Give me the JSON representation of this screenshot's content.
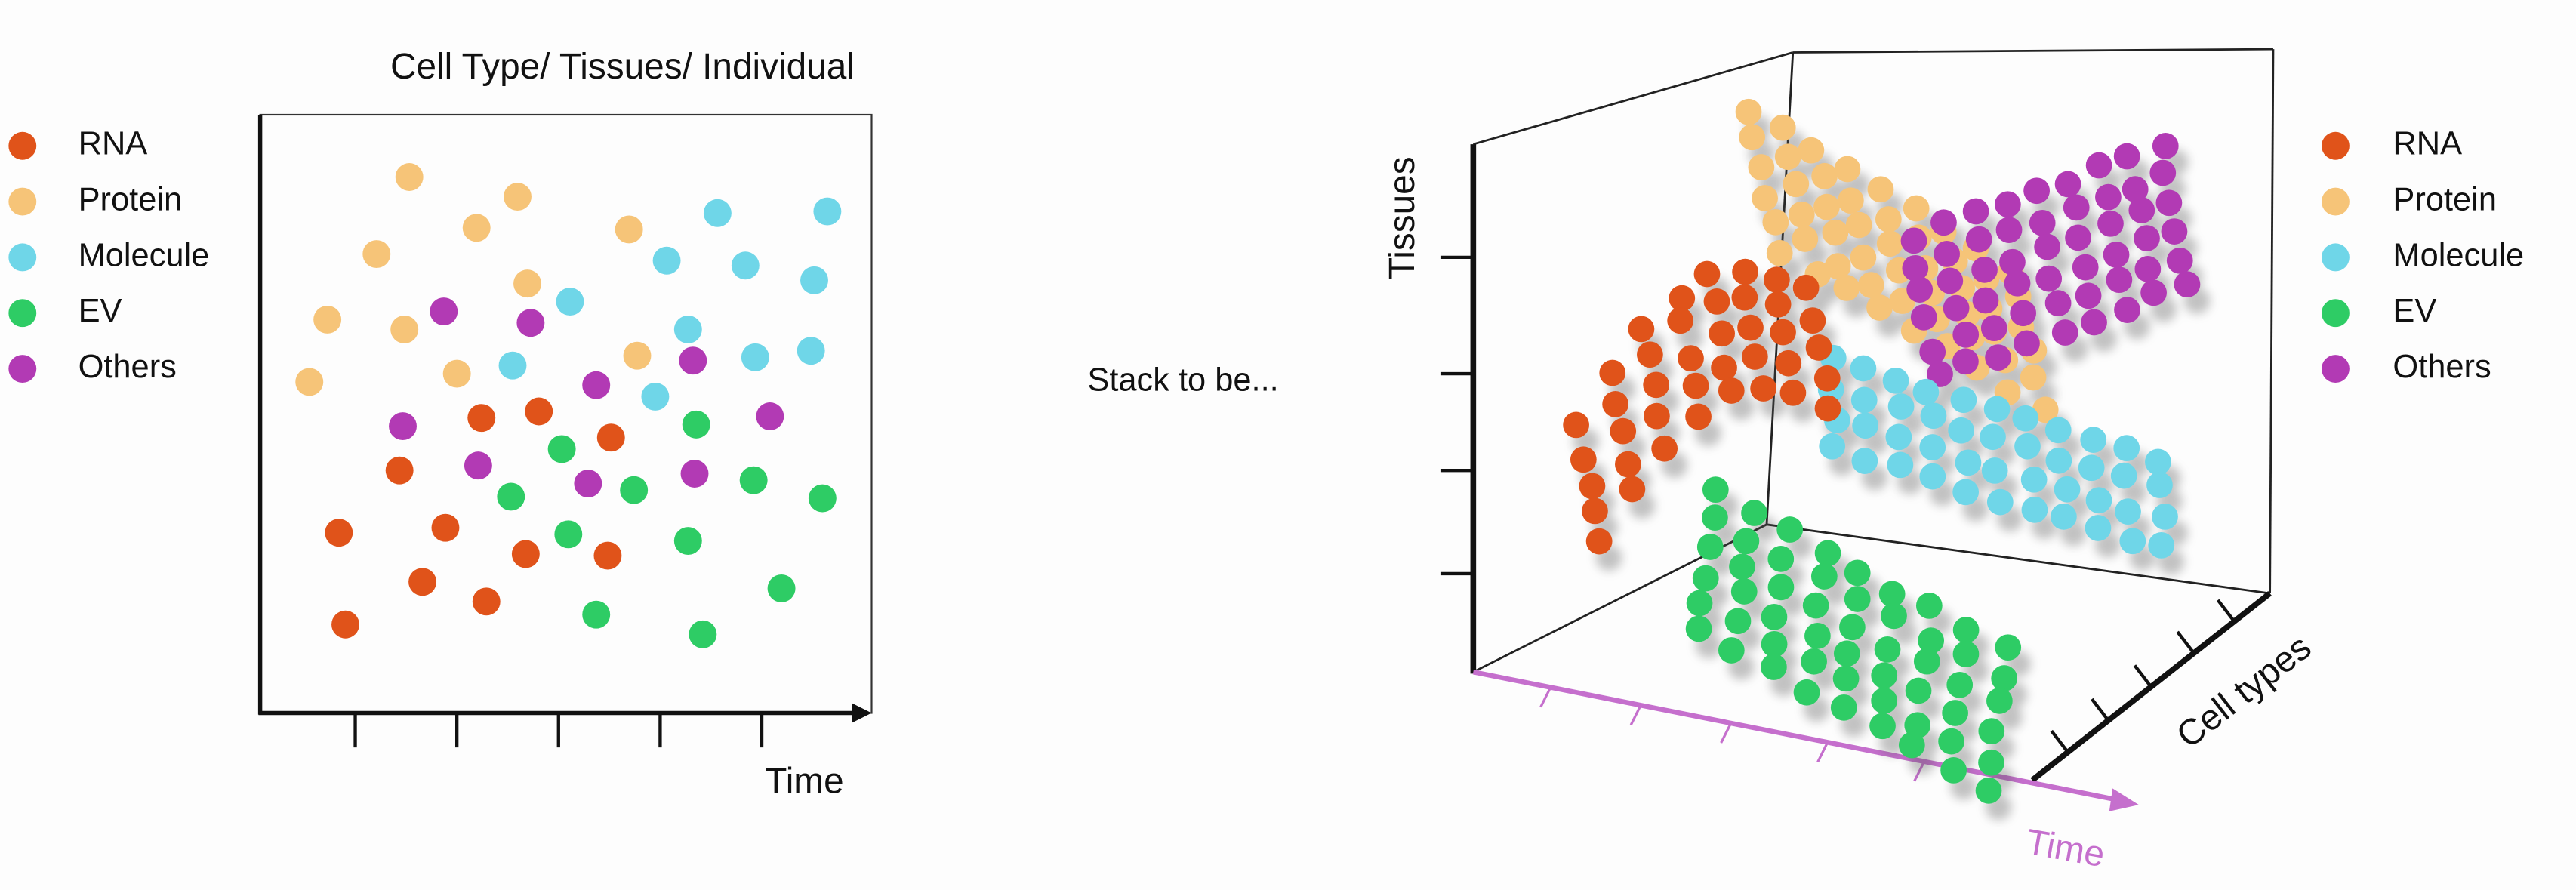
{
  "left_panel": {
    "title": "Cell Type/ Tissues/ Individual",
    "legend": [
      "RNA",
      "Protein",
      "Molecule",
      "EV",
      "Others"
    ],
    "x_axis_label": "Time"
  },
  "middle_text": "Stack to be...",
  "right_panel": {
    "legend": [
      "RNA",
      "Protein",
      "Molecule",
      "EV",
      "Others"
    ],
    "y_axis_label": "Tissues",
    "depth_axis_label": "Cell types",
    "x_axis_label": "Time"
  }
}
